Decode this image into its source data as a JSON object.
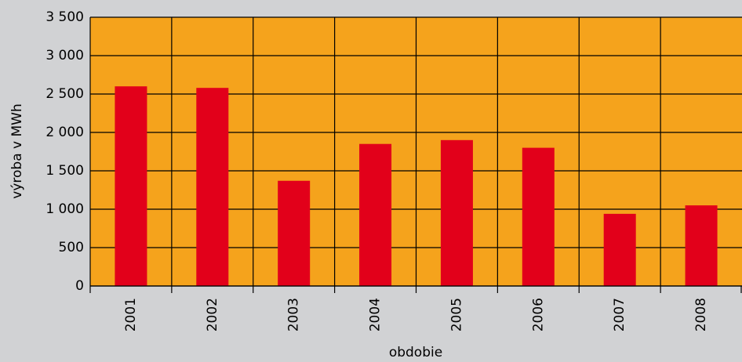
{
  "chart_data": {
    "type": "bar",
    "categories": [
      "2001",
      "2002",
      "2003",
      "2004",
      "2005",
      "2006",
      "2007",
      "2008"
    ],
    "values": [
      2600,
      2580,
      1370,
      1850,
      1900,
      1800,
      940,
      1050
    ],
    "color": "#e2001a",
    "plot_background": "#f5a31c",
    "ylabel": "výroba v MWh",
    "xlabel": "obdobie",
    "ylim": [
      0,
      3500
    ],
    "yticks": [
      0,
      500,
      {
        "value": 1000,
        "label": "1 000"
      },
      {
        "value": 1500,
        "label": "1 500"
      },
      {
        "value": 2000,
        "label": "2 000"
      },
      {
        "value": 2500,
        "label": "2 500"
      },
      {
        "value": 3000,
        "label": "3 000"
      },
      {
        "value": 3500,
        "label": "3 500"
      }
    ],
    "grid": true
  }
}
